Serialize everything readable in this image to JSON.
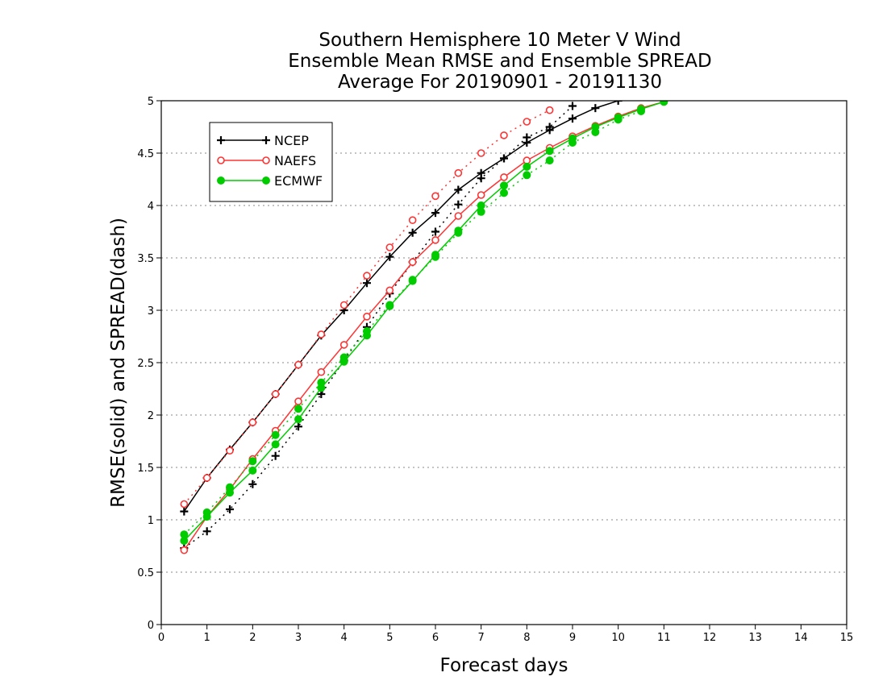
{
  "chart_data": {
    "type": "line",
    "title": [
      "Southern Hemisphere 10 Meter V Wind",
      "Ensemble Mean RMSE and Ensemble SPREAD",
      "Average For 20190901 - 20191130"
    ],
    "xlabel": "Forecast days",
    "ylabel": "RMSE(solid) and SPREAD(dash)",
    "xlim": [
      0,
      15
    ],
    "ylim": [
      0,
      5
    ],
    "xticks": [
      "0",
      "1",
      "2",
      "3",
      "4",
      "5",
      "6",
      "7",
      "8",
      "9",
      "10",
      "11",
      "12",
      "13",
      "14",
      "15"
    ],
    "yticks": [
      "0",
      "0.5",
      "1",
      "1.5",
      "2",
      "2.5",
      "3",
      "3.5",
      "4",
      "4.5",
      "5"
    ],
    "grid": "horizontal dotted",
    "legend_position": "top-left",
    "series": [
      {
        "name": "NCEP",
        "color": "#000000",
        "marker": "plus",
        "metric": "RMSE",
        "style": "solid",
        "x": [
          0.5,
          1,
          1.5,
          2,
          2.5,
          3,
          3.5,
          4,
          4.5,
          5,
          5.5,
          6,
          6.5,
          7,
          7.5,
          8,
          8.5,
          9,
          9.5,
          10
        ],
        "y": [
          1.08,
          1.4,
          1.67,
          1.93,
          2.2,
          2.48,
          2.76,
          3.0,
          3.26,
          3.51,
          3.74,
          3.93,
          4.15,
          4.31,
          4.45,
          4.6,
          4.72,
          4.83,
          4.93,
          5.0
        ]
      },
      {
        "name": "NCEP",
        "color": "#000000",
        "marker": "plus",
        "metric": "SPREAD",
        "style": "dash",
        "x": [
          0.5,
          1,
          1.5,
          2,
          2.5,
          3,
          3.5,
          4,
          4.5,
          5,
          5.5,
          6,
          6.5,
          7,
          7.5,
          8,
          8.5,
          9
        ],
        "y": [
          0.73,
          0.89,
          1.1,
          1.34,
          1.61,
          1.89,
          2.2,
          2.52,
          2.84,
          3.16,
          3.46,
          3.75,
          4.01,
          4.26,
          4.45,
          4.65,
          4.75,
          4.95
        ]
      },
      {
        "name": "NAEFS",
        "color": "#ff3333",
        "marker": "open-circle",
        "metric": "RMSE",
        "style": "solid",
        "x": [
          0.5,
          1,
          1.5,
          2,
          2.5,
          3,
          3.5,
          4,
          4.5,
          5,
          5.5,
          6,
          6.5,
          7,
          7.5,
          8,
          8.5,
          9,
          9.5,
          10,
          10.5,
          11
        ],
        "y": [
          0.71,
          1.03,
          1.29,
          1.58,
          1.85,
          2.13,
          2.41,
          2.67,
          2.94,
          3.19,
          3.46,
          3.67,
          3.9,
          4.1,
          4.27,
          4.43,
          4.55,
          4.66,
          4.76,
          4.85,
          4.93,
          4.99
        ]
      },
      {
        "name": "NAEFS",
        "color": "#ff3333",
        "marker": "open-circle",
        "metric": "SPREAD",
        "style": "dash",
        "x": [
          0.5,
          1,
          1.5,
          2,
          2.5,
          3,
          3.5,
          4,
          4.5,
          5,
          5.5,
          6,
          6.5,
          7,
          7.5,
          8,
          8.5
        ],
        "y": [
          1.15,
          1.4,
          1.66,
          1.93,
          2.2,
          2.48,
          2.77,
          3.05,
          3.33,
          3.6,
          3.86,
          4.09,
          4.31,
          4.5,
          4.67,
          4.8,
          4.91
        ]
      },
      {
        "name": "ECMWF",
        "color": "#00cc00",
        "marker": "filled-circle",
        "metric": "RMSE",
        "style": "solid",
        "x": [
          0.5,
          1,
          1.5,
          2,
          2.5,
          3,
          3.5,
          4,
          4.5,
          5,
          5.5,
          6,
          6.5,
          7,
          7.5,
          8,
          8.5,
          9,
          9.5,
          10,
          10.5,
          11
        ],
        "y": [
          0.8,
          1.03,
          1.26,
          1.47,
          1.72,
          1.96,
          2.26,
          2.51,
          2.76,
          3.04,
          3.28,
          3.53,
          3.76,
          4.0,
          4.19,
          4.37,
          4.52,
          4.64,
          4.75,
          4.84,
          4.92,
          4.99
        ]
      },
      {
        "name": "ECMWF",
        "color": "#00cc00",
        "marker": "filled-circle",
        "metric": "SPREAD",
        "style": "dash",
        "x": [
          0.5,
          1,
          1.5,
          2,
          2.5,
          3,
          3.5,
          4,
          4.5,
          5,
          5.5,
          6,
          6.5,
          7,
          7.5,
          8,
          8.5,
          9,
          9.5,
          10,
          10.5
        ],
        "y": [
          0.86,
          1.07,
          1.31,
          1.56,
          1.81,
          2.06,
          2.31,
          2.55,
          2.8,
          3.05,
          3.29,
          3.51,
          3.74,
          3.94,
          4.12,
          4.29,
          4.43,
          4.6,
          4.7,
          4.82,
          4.9
        ]
      }
    ]
  }
}
